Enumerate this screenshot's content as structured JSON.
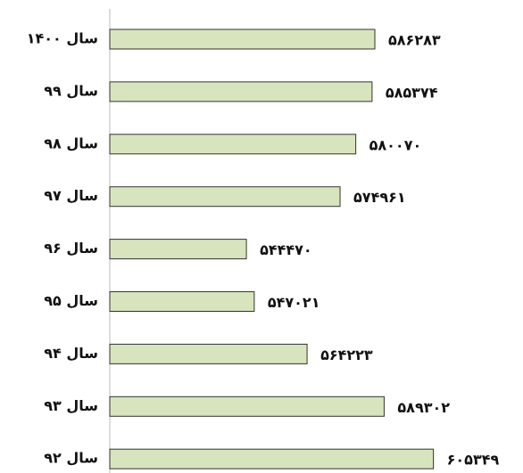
{
  "chart_data": {
    "type": "barh",
    "categories": [
      "سال ۱۴۰۰",
      "سال ۹۹",
      "سال ۹۸",
      "سال ۹۷",
      "سال ۹۶",
      "سال ۹۵",
      "سال ۹۴",
      "سال ۹۳",
      "سال ۹۲"
    ],
    "values": [
      586283,
      585374,
      580070,
      574961,
      544470,
      547021,
      564223,
      589302,
      605349
    ],
    "value_labels": [
      "۵۸۶۲۸۳",
      "۵۸۵۳۷۴",
      "۵۸۰۰۷۰",
      "۵۷۴۹۶۱",
      "۵۴۴۴۷۰",
      "۵۴۷۰۲۱",
      "۵۶۴۲۲۳",
      "۵۸۹۳۰۲",
      "۶۰۵۳۴۹"
    ],
    "color": "#d7e4bd",
    "xlim": [
      500000,
      634500
    ]
  }
}
